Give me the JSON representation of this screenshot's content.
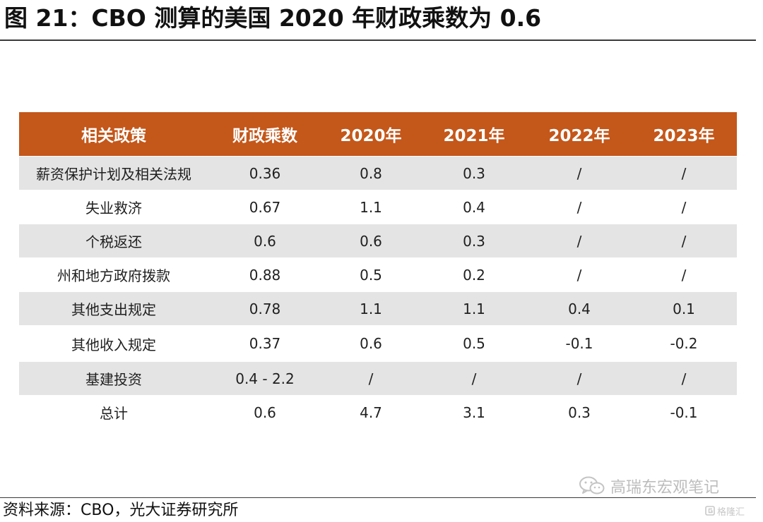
{
  "title": "图 21：CBO 测算的美国 2020 年财政乘数为 0.6",
  "chart_data": {
    "type": "table",
    "columns": [
      "相关政策",
      "财政乘数",
      "2020年",
      "2021年",
      "2022年",
      "2023年"
    ],
    "rows": [
      [
        "薪资保护计划及相关法规",
        "0.36",
        "0.8",
        "0.3",
        "/",
        "/"
      ],
      [
        "失业救济",
        "0.67",
        "1.1",
        "0.4",
        "/",
        "/"
      ],
      [
        "个税返还",
        "0.6",
        "0.6",
        "0.3",
        "/",
        "/"
      ],
      [
        "州和地方政府拨款",
        "0.88",
        "0.5",
        "0.2",
        "/",
        "/"
      ],
      [
        "其他支出规定",
        "0.78",
        "1.1",
        "1.1",
        "0.4",
        "0.1"
      ],
      [
        "其他收入规定",
        "0.37",
        "0.6",
        "0.5",
        "-0.1",
        "-0.2"
      ],
      [
        "基建投资",
        "0.4 - 2.2",
        "/",
        "/",
        "/",
        "/"
      ],
      [
        "总计",
        "0.6",
        "4.7",
        "3.1",
        "0.3",
        "-0.1"
      ]
    ]
  },
  "watermark": {
    "text": "高瑞东宏观笔记",
    "icon": "wechat-icon"
  },
  "badge": {
    "text": "格隆汇",
    "icon": "gelonghui-logo-icon"
  },
  "source": "资料来源：CBO，光大证券研究所",
  "colors": {
    "header_bg": "#c4571a",
    "header_text": "#ffffff",
    "row_shaded": "#e4e4e4",
    "row_plain": "#ffffff"
  }
}
